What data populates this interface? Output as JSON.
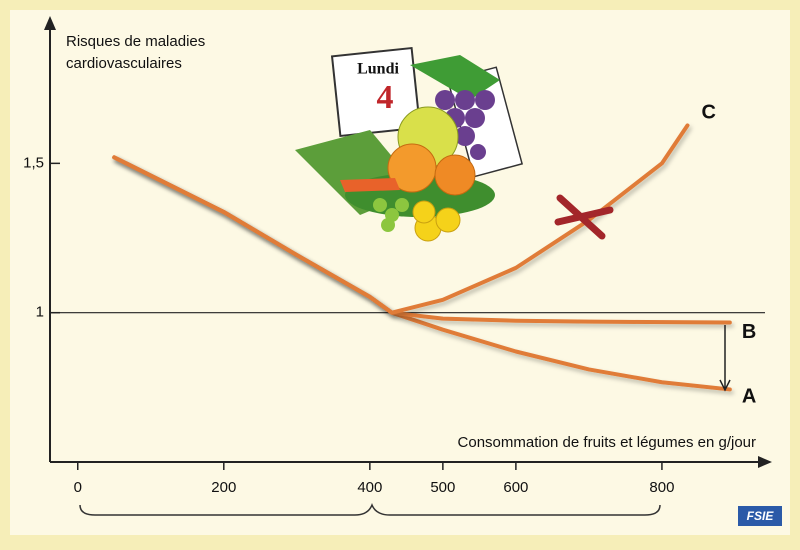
{
  "chart_data": {
    "type": "line",
    "y_label_lines": [
      "Risques de maladies",
      "cardiovasculaires"
    ],
    "x_label": "Consommation de fruits et légumes en g/jour",
    "xlim": [
      -38,
      948
    ],
    "ylim": [
      0.5,
      1.98
    ],
    "xticks": [
      0,
      200,
      400,
      500,
      600,
      800
    ],
    "yticks": [
      {
        "value": 1.5,
        "label": "1,5"
      },
      1
    ],
    "reference_line": 1,
    "series": [
      {
        "name": "A",
        "color": "#e07b39",
        "x": [
          50,
          200,
          300,
          400,
          430,
          500,
          600,
          700,
          800,
          893
        ],
        "values": [
          1.52,
          1.337,
          1.193,
          1.053,
          1.0,
          0.943,
          0.87,
          0.81,
          0.767,
          0.743
        ]
      },
      {
        "name": "B",
        "color": "#e07b39",
        "x": [
          50,
          200,
          300,
          400,
          430,
          500,
          600,
          700,
          893
        ],
        "values": [
          1.52,
          1.337,
          1.193,
          1.053,
          1.0,
          0.98,
          0.973,
          0.97,
          0.967
        ]
      },
      {
        "name": "C",
        "color": "#e07b39",
        "x": [
          50,
          200,
          300,
          400,
          430,
          500,
          600,
          700,
          800,
          835
        ],
        "values": [
          1.52,
          1.337,
          1.193,
          1.053,
          1.0,
          1.043,
          1.15,
          1.31,
          1.5,
          1.627
        ]
      }
    ]
  },
  "illustration": {
    "calendar_day": "Lundi",
    "calendar_date": "4",
    "logo": "FSIE"
  }
}
